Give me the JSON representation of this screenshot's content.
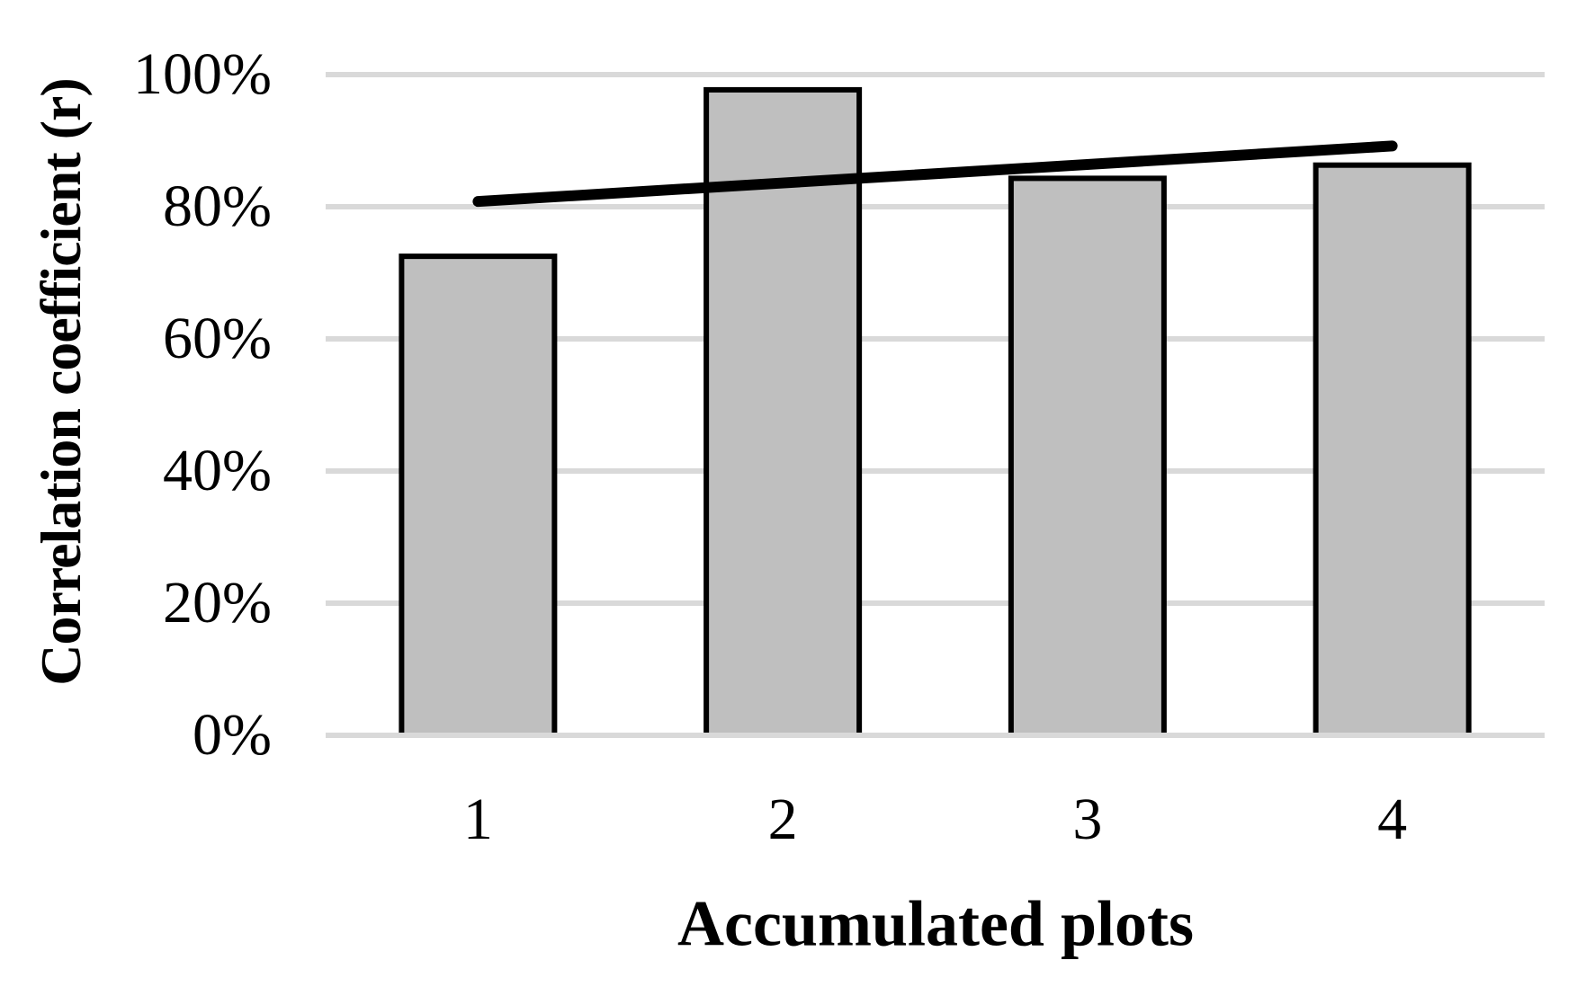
{
  "chart_data": {
    "type": "bar",
    "title": "",
    "xlabel": "Accumulated plots",
    "ylabel": "Correlation coefficient (r)",
    "categories": [
      "1",
      "2",
      "3",
      "4"
    ],
    "values": [
      72.5,
      97.7,
      84.3,
      86.3
    ],
    "y_ticks": [
      {
        "label": "0%",
        "value": 0
      },
      {
        "label": "20%",
        "value": 20
      },
      {
        "label": "40%",
        "value": 40
      },
      {
        "label": "60%",
        "value": 60
      },
      {
        "label": "80%",
        "value": 80
      },
      {
        "label": "100%",
        "value": 100
      }
    ],
    "ylim": [
      0,
      100
    ],
    "grid": "horizontal",
    "legend": "none",
    "trendline": {
      "type": "linear",
      "start_value": 80.8,
      "end_value": 89.2
    },
    "colors": {
      "background": "#ffffff",
      "bar_fill": "#bfbfbf",
      "bar_border": "#000000",
      "gridline": "#d9d9d9",
      "trend_line": "#000000",
      "text": "#000000"
    }
  }
}
